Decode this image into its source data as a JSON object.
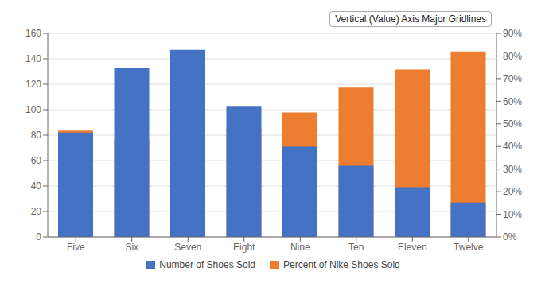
{
  "chart_data": {
    "type": "bar",
    "categories": [
      "Five",
      "Six",
      "Seven",
      "Eight",
      "Nine",
      "Ten",
      "Eleven",
      "Twelve"
    ],
    "series": [
      {
        "name": "Number of Shoes Sold",
        "color": "#4472C4",
        "values": [
          82,
          133,
          147,
          103,
          71,
          56,
          39,
          27
        ]
      },
      {
        "name": "Percent of Nike Shoes Sold",
        "color": "#ED7D31",
        "values": [
          0.47,
          0.43,
          0.32,
          0.48,
          0.55,
          0.66,
          0.74,
          0.82
        ],
        "axis": "y2"
      }
    ],
    "ylim": [
      0,
      160
    ],
    "yticks": [
      0,
      20,
      40,
      60,
      80,
      100,
      120,
      140,
      160
    ],
    "y2lim": [
      0,
      0.9
    ],
    "y2ticks": [
      {
        "value": 0.0,
        "label": "0%"
      },
      {
        "value": 0.1,
        "label": "10%"
      },
      {
        "value": 0.2,
        "label": "20%"
      },
      {
        "value": 0.3,
        "label": "30%"
      },
      {
        "value": 0.4,
        "label": "40%"
      },
      {
        "value": 0.5,
        "label": "50%"
      },
      {
        "value": 0.6,
        "label": "60%"
      },
      {
        "value": 0.7,
        "label": "70%"
      },
      {
        "value": 0.8,
        "label": "80%"
      },
      {
        "value": 0.9,
        "label": "90%"
      }
    ],
    "grid": true,
    "legend": "bottom",
    "annotations": [
      "Vertical (Value) Axis Major Gridlines"
    ]
  }
}
